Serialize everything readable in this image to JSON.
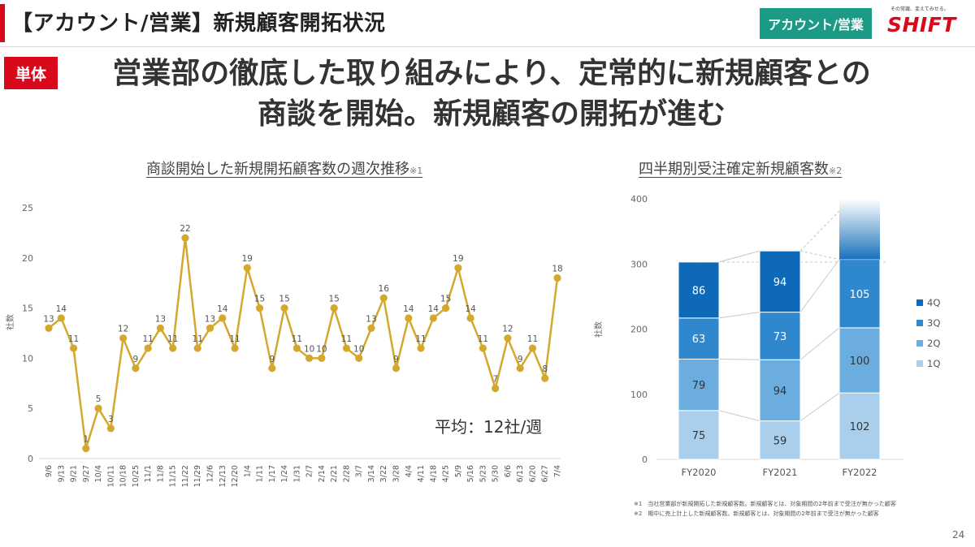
{
  "header": {
    "title": "【アカウント/営業】新規顧客開拓状況",
    "tag": "アカウント/営業",
    "logo_tagline": "その常識、変えてみせる。",
    "logo_text": "SHIFT"
  },
  "badge": "単体",
  "headline": {
    "line1": "営業部の徹底した取り組みにより、定常的に新規顧客との",
    "line2": "商談を開始。新規顧客の開拓が進む"
  },
  "page_number": "24",
  "footnotes": [
    "※1　当社営業部が新規開拓した新規顧客数。新規顧客とは、対象期間の2年前まで受注が無かった顧客",
    "※2　期中に売上計上した新規顧客数。新規顧客とは、対象期間の2年前まで受注が無かった顧客"
  ],
  "colors": {
    "accent": "#d9091c",
    "tag": "#1b9a86",
    "line": "#d4a82e",
    "q1": "#a9cfec",
    "q2": "#6aadde",
    "q3": "#2f87ce",
    "q4": "#0e6ab8"
  },
  "chart_data": [
    {
      "type": "line",
      "title": "商談開始した新規開拓顧客数の週次推移",
      "title_note": "※1",
      "ylabel": "社数",
      "ylim": [
        0,
        25
      ],
      "yticks": [
        0,
        5,
        10,
        15,
        20,
        25
      ],
      "grid": false,
      "annotation": "平均：12社/週",
      "x": [
        "9/6",
        "9/13",
        "9/21",
        "9/27",
        "10/4",
        "10/11",
        "10/18",
        "10/25",
        "11/1",
        "11/8",
        "11/15",
        "11/22",
        "11/29",
        "12/6",
        "12/13",
        "12/20",
        "1/4",
        "1/11",
        "1/17",
        "1/24",
        "1/31",
        "2/7",
        "2/14",
        "2/21",
        "2/28",
        "3/7",
        "3/14",
        "3/22",
        "3/28",
        "4/4",
        "4/11",
        "4/18",
        "4/25",
        "5/9",
        "5/16",
        "5/23",
        "5/30",
        "6/6",
        "6/13",
        "6/20",
        "6/27",
        "7/4"
      ],
      "values": [
        13,
        14,
        11,
        1,
        5,
        3,
        12,
        9,
        11,
        13,
        11,
        22,
        11,
        13,
        14,
        11,
        19,
        15,
        9,
        15,
        11,
        10,
        10,
        15,
        11,
        10,
        13,
        16,
        9,
        14,
        11,
        14,
        15,
        19,
        14,
        11,
        7,
        12,
        9,
        11,
        8,
        18
      ]
    },
    {
      "type": "bar",
      "stacked": true,
      "title": "四半期別受注確定新規顧客数",
      "title_note": "※2",
      "ylabel": "社数",
      "ylim": [
        0,
        400
      ],
      "yticks": [
        0,
        100,
        200,
        300,
        400
      ],
      "categories": [
        "FY2020",
        "FY2021",
        "FY2022"
      ],
      "series": [
        {
          "name": "1Q",
          "values": [
            75,
            59,
            102
          ]
        },
        {
          "name": "2Q",
          "values": [
            79,
            94,
            100
          ]
        },
        {
          "name": "3Q",
          "values": [
            63,
            73,
            105
          ]
        },
        {
          "name": "4Q",
          "values": [
            86,
            94,
            null
          ]
        }
      ],
      "legend": "right",
      "legend_order": [
        "4Q",
        "3Q",
        "2Q",
        "1Q"
      ]
    }
  ]
}
